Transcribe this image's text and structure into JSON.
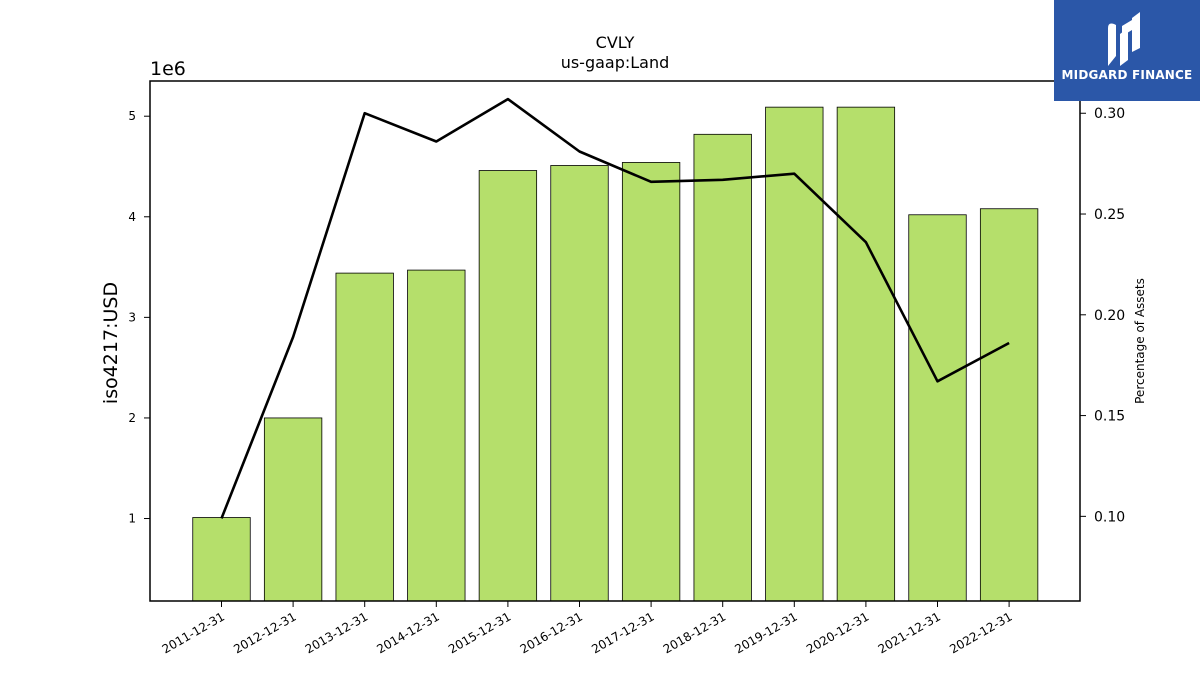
{
  "chart_data": {
    "type": "bar",
    "title": "CVLY",
    "subtitle": "us-gaap:Land",
    "ylabel": "iso4217:USD",
    "y_offset_label": "1e6",
    "y2label": "Percentage of Assets",
    "categories": [
      "2011-12-31",
      "2012-12-31",
      "2013-12-31",
      "2014-12-31",
      "2015-12-31",
      "2016-12-31",
      "2017-12-31",
      "2018-12-31",
      "2019-12-31",
      "2020-12-31",
      "2021-12-31",
      "2022-12-31"
    ],
    "series": [
      {
        "type": "bar",
        "axis": "left",
        "values": [
          1010000,
          2000000,
          3440000,
          3470000,
          4460000,
          4510000,
          4540000,
          4820000,
          5090000,
          5090000,
          4020000,
          4080000
        ]
      },
      {
        "type": "line",
        "axis": "right",
        "values": [
          0.099,
          0.189,
          0.3,
          0.286,
          0.307,
          0.281,
          0.266,
          0.267,
          0.27,
          0.236,
          0.167,
          0.186
        ]
      }
    ],
    "ylim": [
      180000,
      5350000
    ],
    "y2lim": [
      0.058,
      0.316
    ],
    "yticks": [
      1,
      2,
      3,
      4,
      5
    ],
    "y2ticks": [
      "0.10",
      "0.15",
      "0.20",
      "0.25",
      "0.30"
    ],
    "y2tick_values": [
      0.1,
      0.15,
      0.2,
      0.25,
      0.3
    ],
    "colors": {
      "bar": "#b5df6b",
      "bar_edge": "#000000",
      "line": "#000000"
    },
    "grid": false
  },
  "logo": {
    "text": "MIDGARD FINANCE",
    "color": "#2b57a8"
  }
}
